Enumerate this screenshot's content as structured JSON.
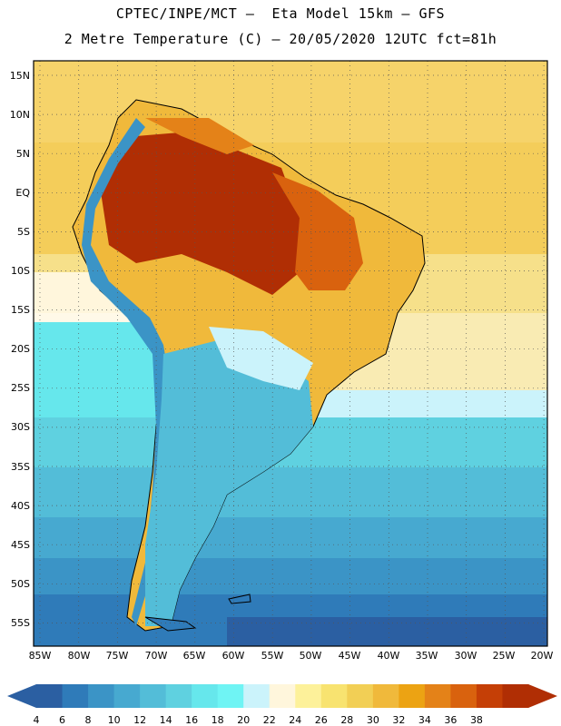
{
  "header": {
    "line1": "CPTEC/INPE/MCT –  Eta Model 15km – GFS",
    "line2": "2 Metre Temperature (C) – 20/05/2020 12UTC fct=81h"
  },
  "map": {
    "lat_labels": [
      "15N",
      "10N",
      "5N",
      "EQ",
      "5S",
      "10S",
      "15S",
      "20S",
      "25S",
      "30S",
      "35S",
      "40S",
      "45S",
      "50S",
      "55S"
    ],
    "lon_labels": [
      "85W",
      "80W",
      "75W",
      "70W",
      "65W",
      "60W",
      "55W",
      "50W",
      "45W",
      "40W",
      "35W",
      "30W",
      "25W",
      "20W"
    ]
  },
  "colorbar": {
    "values": [
      "4",
      "6",
      "8",
      "10",
      "12",
      "14",
      "16",
      "18",
      "20",
      "22",
      "24",
      "26",
      "28",
      "30",
      "32",
      "34",
      "36",
      "38"
    ],
    "colors": [
      "#2b5fa2",
      "#2f7bb9",
      "#3b94c6",
      "#47a9d0",
      "#53bdd8",
      "#5fd1e0",
      "#66e7ec",
      "#6ff4f4",
      "#cbf3fb",
      "#fff6dc",
      "#fdf19a",
      "#f8e370",
      "#f2cf55",
      "#f0b93b",
      "#eca313",
      "#e48218",
      "#d9620e",
      "#c53f06",
      "#b02e04"
    ],
    "low_arrow_color": "#2b5fa2",
    "high_arrow_color": "#b02e04"
  }
}
